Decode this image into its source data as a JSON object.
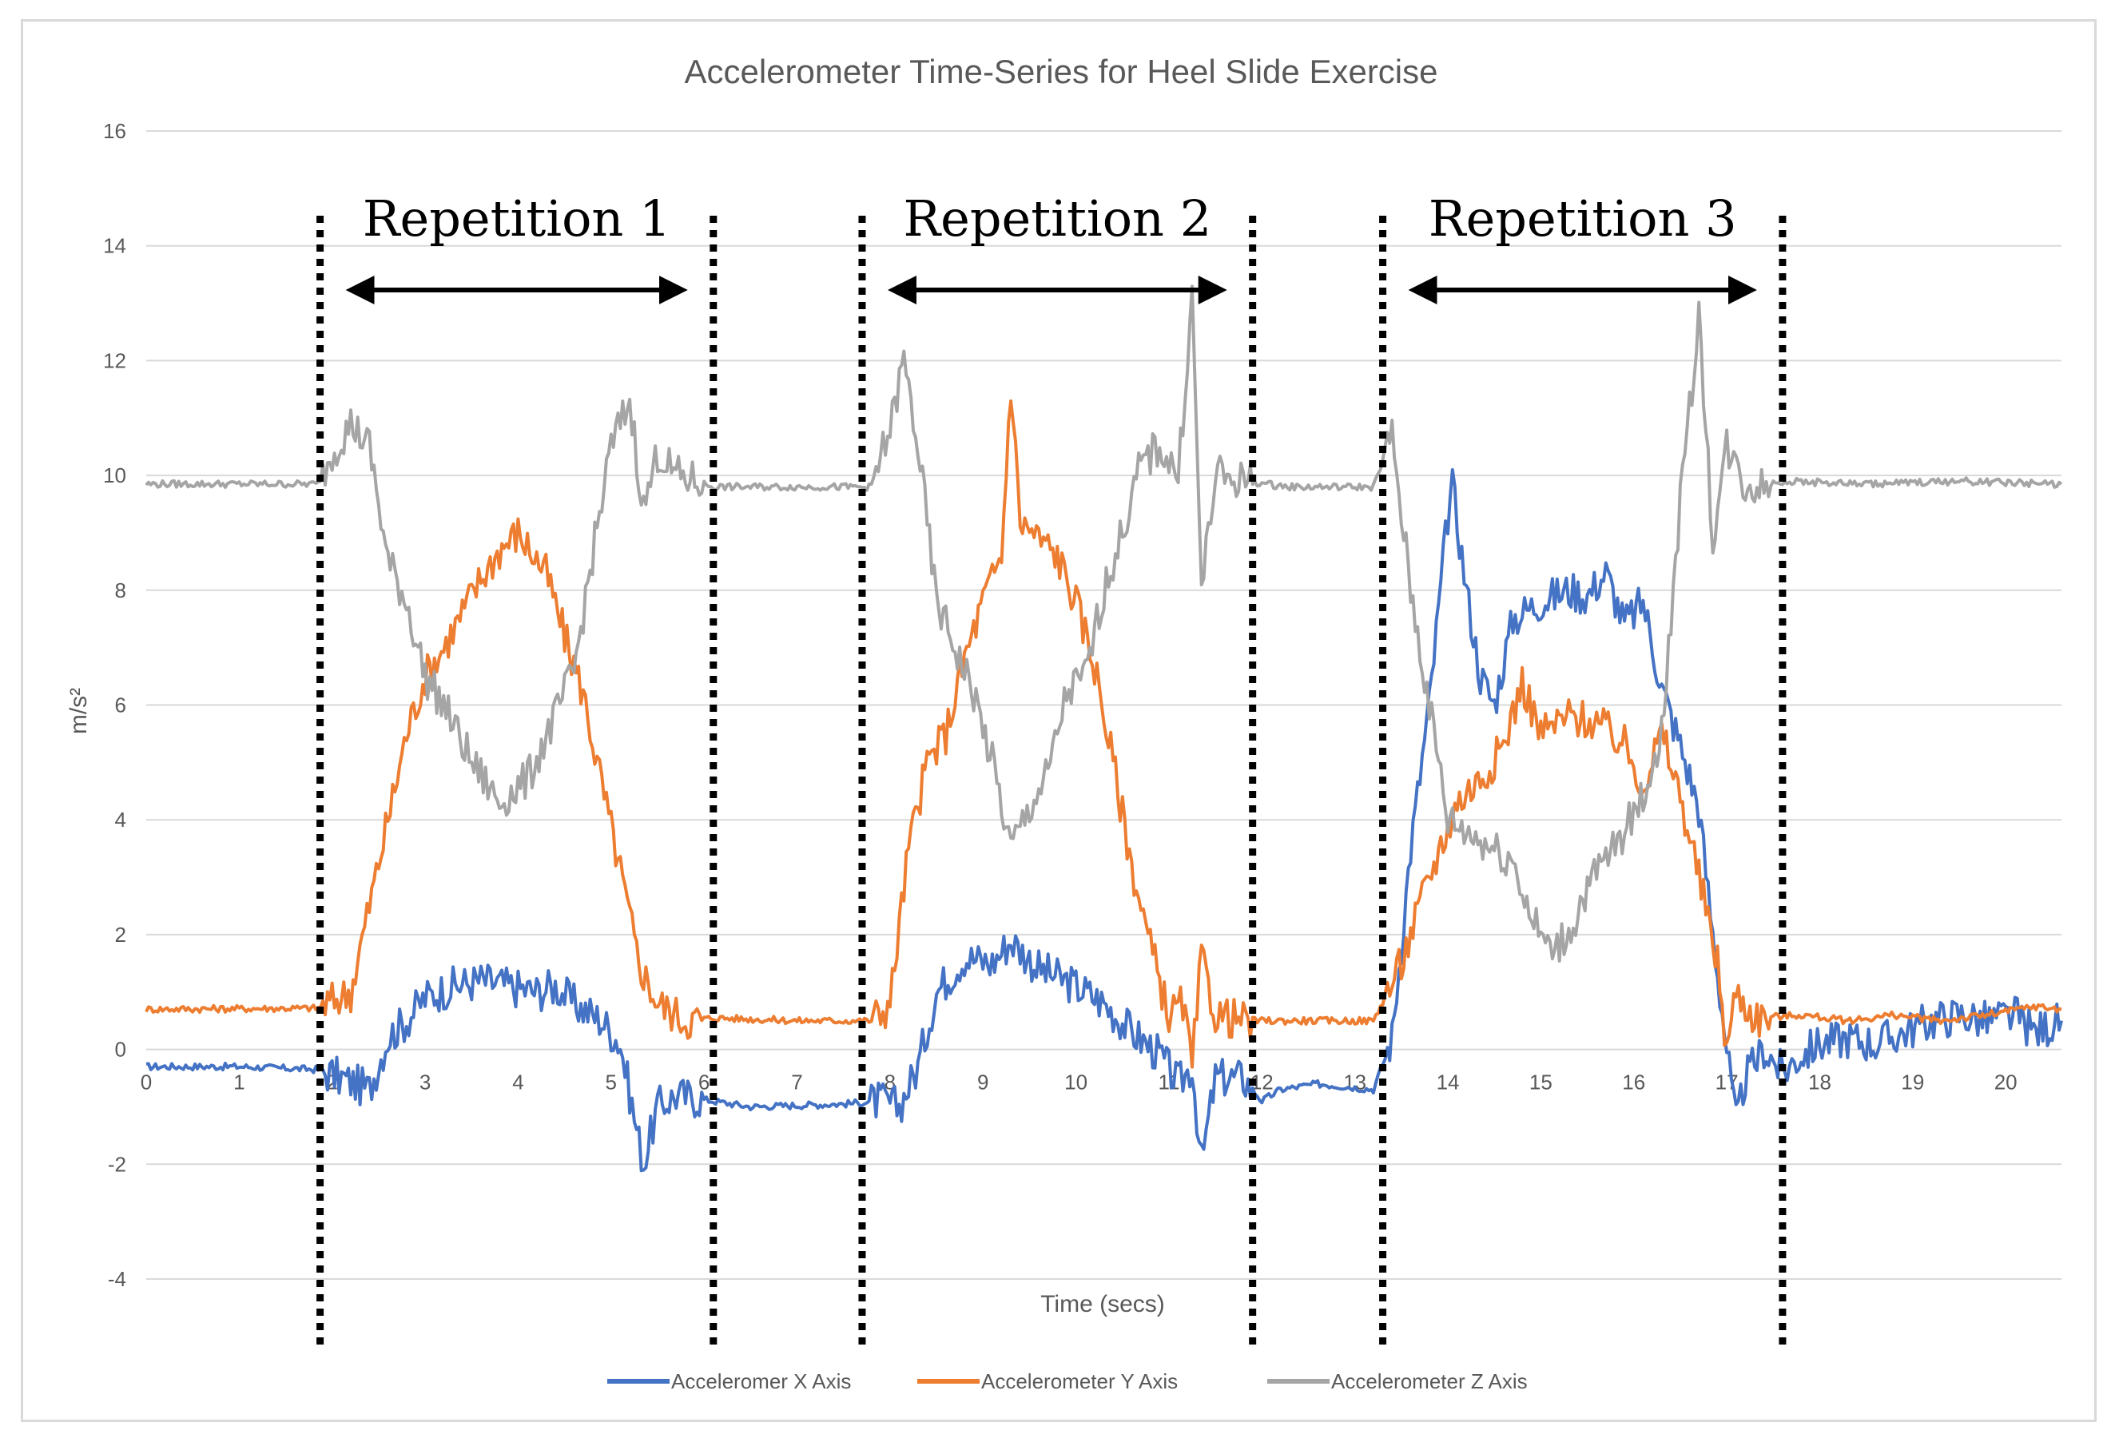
{
  "chart_data": {
    "type": "line",
    "title": "Accelerometer Time-Series for Heel Slide Exercise",
    "xlabel": "Time (secs)",
    "ylabel": "m/s²",
    "xlim": [
      0,
      20.6
    ],
    "ylim": [
      -4,
      16
    ],
    "x_ticks": [
      0,
      1,
      2,
      3,
      4,
      5,
      6,
      7,
      8,
      9,
      10,
      11,
      12,
      13,
      14,
      15,
      16,
      17,
      18,
      19,
      20
    ],
    "x_tick_labels": [
      "0",
      "1",
      "2",
      "3",
      "4",
      "5",
      "6",
      "7",
      "8",
      "9",
      "10",
      "11",
      "12",
      "13",
      "14",
      "15",
      "16",
      "17",
      "18",
      "19",
      "20"
    ],
    "y_ticks": [
      -4,
      -2,
      0,
      2,
      4,
      6,
      8,
      10,
      12,
      14,
      16
    ],
    "grid": "horizontal",
    "legend_position": "bottom",
    "colors": {
      "x": "#4472c4",
      "y": "#ed7d31",
      "z": "#a5a5a5",
      "grid": "#d9d9d9",
      "annotation": "#000000"
    },
    "series": [
      {
        "name": "Acceleromer X Axis",
        "key": "x",
        "points": [
          [
            0,
            -0.3
          ],
          [
            1,
            -0.3
          ],
          [
            1.85,
            -0.35
          ],
          [
            2.1,
            -0.5
          ],
          [
            2.4,
            -0.7
          ],
          [
            2.6,
            0.2
          ],
          [
            2.8,
            0.5
          ],
          [
            3.0,
            0.9
          ],
          [
            3.3,
            1.1
          ],
          [
            3.6,
            1.2
          ],
          [
            3.9,
            1.1
          ],
          [
            4.2,
            1.0
          ],
          [
            4.4,
            1.1
          ],
          [
            4.6,
            0.8
          ],
          [
            4.9,
            0.5
          ],
          [
            5.1,
            0.1
          ],
          [
            5.25,
            -1.2
          ],
          [
            5.35,
            -2.0
          ],
          [
            5.5,
            -1.0
          ],
          [
            5.7,
            -0.8
          ],
          [
            6.1,
            -0.9
          ],
          [
            6.5,
            -1.0
          ],
          [
            7.5,
            -0.95
          ],
          [
            7.9,
            -0.9
          ],
          [
            8.1,
            -1.0
          ],
          [
            8.3,
            -0.3
          ],
          [
            8.5,
            1.0
          ],
          [
            8.8,
            1.6
          ],
          [
            9.1,
            1.5
          ],
          [
            9.3,
            1.9
          ],
          [
            9.6,
            1.4
          ],
          [
            10.0,
            1.1
          ],
          [
            10.3,
            0.8
          ],
          [
            10.6,
            0.3
          ],
          [
            10.9,
            -0.1
          ],
          [
            11.1,
            -0.6
          ],
          [
            11.25,
            -0.3
          ],
          [
            11.35,
            -2.0
          ],
          [
            11.5,
            -0.5
          ],
          [
            11.8,
            -0.5
          ],
          [
            12.0,
            -0.9
          ],
          [
            12.2,
            -0.7
          ],
          [
            12.6,
            -0.6
          ],
          [
            13.2,
            -0.7
          ],
          [
            13.4,
            0.2
          ],
          [
            13.6,
            3.5
          ],
          [
            13.8,
            6.0
          ],
          [
            14.0,
            9.3
          ],
          [
            14.05,
            9.8
          ],
          [
            14.2,
            8.0
          ],
          [
            14.35,
            6.5
          ],
          [
            14.5,
            6.0
          ],
          [
            14.7,
            7.5
          ],
          [
            15.0,
            7.8
          ],
          [
            15.3,
            8.0
          ],
          [
            15.5,
            7.9
          ],
          [
            15.7,
            8.3
          ],
          [
            15.9,
            7.4
          ],
          [
            16.1,
            7.8
          ],
          [
            16.3,
            6.3
          ],
          [
            16.5,
            5.3
          ],
          [
            16.7,
            4.2
          ],
          [
            16.85,
            2.0
          ],
          [
            17.0,
            0.0
          ],
          [
            17.1,
            -1.3
          ],
          [
            17.2,
            -0.5
          ],
          [
            17.4,
            0.0
          ],
          [
            17.6,
            -0.4
          ],
          [
            17.8,
            -0.1
          ],
          [
            18.0,
            0.1
          ],
          [
            18.3,
            0.2
          ],
          [
            18.6,
            0.1
          ],
          [
            18.9,
            0.3
          ],
          [
            19.2,
            0.5
          ],
          [
            19.5,
            0.6
          ],
          [
            19.8,
            0.5
          ],
          [
            20.1,
            0.6
          ],
          [
            20.3,
            0.3
          ],
          [
            20.6,
            0.5
          ]
        ]
      },
      {
        "name": "Accelerometer Y Axis",
        "key": "y",
        "points": [
          [
            0,
            0.7
          ],
          [
            1.85,
            0.72
          ],
          [
            2.2,
            1.0
          ],
          [
            2.4,
            2.5
          ],
          [
            2.6,
            4.0
          ],
          [
            2.8,
            5.5
          ],
          [
            3.0,
            6.5
          ],
          [
            3.2,
            7.0
          ],
          [
            3.4,
            7.6
          ],
          [
            3.6,
            8.2
          ],
          [
            3.8,
            8.7
          ],
          [
            4.0,
            9.0
          ],
          [
            4.3,
            8.3
          ],
          [
            4.5,
            7.2
          ],
          [
            4.7,
            6.2
          ],
          [
            4.9,
            4.6
          ],
          [
            5.1,
            3.1
          ],
          [
            5.3,
            1.5
          ],
          [
            5.5,
            0.8
          ],
          [
            5.8,
            0.5
          ],
          [
            6.1,
            0.55
          ],
          [
            7.0,
            0.5
          ],
          [
            7.8,
            0.5
          ],
          [
            8.0,
            0.8
          ],
          [
            8.2,
            3.5
          ],
          [
            8.4,
            5.0
          ],
          [
            8.6,
            5.5
          ],
          [
            8.8,
            6.8
          ],
          [
            9.0,
            7.8
          ],
          [
            9.2,
            8.6
          ],
          [
            9.3,
            11.6
          ],
          [
            9.4,
            9.2
          ],
          [
            9.6,
            8.9
          ],
          [
            9.8,
            8.6
          ],
          [
            10.0,
            7.8
          ],
          [
            10.2,
            6.7
          ],
          [
            10.4,
            5.0
          ],
          [
            10.6,
            3.2
          ],
          [
            10.8,
            1.8
          ],
          [
            11.0,
            0.6
          ],
          [
            11.15,
            0.8
          ],
          [
            11.25,
            -0.3
          ],
          [
            11.35,
            1.6
          ],
          [
            11.5,
            0.6
          ],
          [
            11.8,
            0.5
          ],
          [
            12.3,
            0.5
          ],
          [
            13.2,
            0.5
          ],
          [
            13.5,
            1.5
          ],
          [
            13.8,
            3.0
          ],
          [
            14.1,
            4.3
          ],
          [
            14.4,
            4.8
          ],
          [
            14.6,
            5.3
          ],
          [
            14.8,
            6.4
          ],
          [
            15.0,
            5.5
          ],
          [
            15.3,
            5.8
          ],
          [
            15.6,
            5.7
          ],
          [
            15.9,
            5.3
          ],
          [
            16.1,
            4.6
          ],
          [
            16.3,
            5.5
          ],
          [
            16.5,
            4.4
          ],
          [
            16.7,
            3.0
          ],
          [
            16.9,
            1.5
          ],
          [
            17.0,
            0.0
          ],
          [
            17.1,
            1.0
          ],
          [
            17.3,
            0.55
          ],
          [
            17.8,
            0.6
          ],
          [
            18.3,
            0.5
          ],
          [
            18.8,
            0.6
          ],
          [
            19.3,
            0.5
          ],
          [
            19.8,
            0.6
          ],
          [
            20.3,
            0.75
          ],
          [
            20.6,
            0.7
          ]
        ]
      },
      {
        "name": "Accelerometer Z Axis",
        "key": "z",
        "points": [
          [
            0,
            9.85
          ],
          [
            1.85,
            9.85
          ],
          [
            2.0,
            10.4
          ],
          [
            2.2,
            10.9
          ],
          [
            2.4,
            10.5
          ],
          [
            2.6,
            8.5
          ],
          [
            2.8,
            7.8
          ],
          [
            3.0,
            6.5
          ],
          [
            3.2,
            6.0
          ],
          [
            3.5,
            5.0
          ],
          [
            3.8,
            4.3
          ],
          [
            4.1,
            4.7
          ],
          [
            4.4,
            5.8
          ],
          [
            4.6,
            6.6
          ],
          [
            4.8,
            8.6
          ],
          [
            5.0,
            10.5
          ],
          [
            5.2,
            11.3
          ],
          [
            5.35,
            9.4
          ],
          [
            5.5,
            10.4
          ],
          [
            5.7,
            10.0
          ],
          [
            6.1,
            9.8
          ],
          [
            7.8,
            9.8
          ],
          [
            8.0,
            10.8
          ],
          [
            8.15,
            12.0
          ],
          [
            8.3,
            10.5
          ],
          [
            8.5,
            7.8
          ],
          [
            8.7,
            7.0
          ],
          [
            8.9,
            6.2
          ],
          [
            9.1,
            5.0
          ],
          [
            9.3,
            3.5
          ],
          [
            9.5,
            4.2
          ],
          [
            9.7,
            4.8
          ],
          [
            9.9,
            6.2
          ],
          [
            10.1,
            6.5
          ],
          [
            10.3,
            8.0
          ],
          [
            10.5,
            9.0
          ],
          [
            10.7,
            10.2
          ],
          [
            10.9,
            10.5
          ],
          [
            11.1,
            10.0
          ],
          [
            11.25,
            13.1
          ],
          [
            11.35,
            8.0
          ],
          [
            11.5,
            10.0
          ],
          [
            11.8,
            9.9
          ],
          [
            12.3,
            9.8
          ],
          [
            13.2,
            9.8
          ],
          [
            13.4,
            10.7
          ],
          [
            13.6,
            8.0
          ],
          [
            13.8,
            6.0
          ],
          [
            14.0,
            4.0
          ],
          [
            14.2,
            3.8
          ],
          [
            14.5,
            3.5
          ],
          [
            14.7,
            3.3
          ],
          [
            14.9,
            2.3
          ],
          [
            15.1,
            1.7
          ],
          [
            15.3,
            2.0
          ],
          [
            15.5,
            2.8
          ],
          [
            15.7,
            3.3
          ],
          [
            15.9,
            3.8
          ],
          [
            16.1,
            4.4
          ],
          [
            16.3,
            5.5
          ],
          [
            16.5,
            9.5
          ],
          [
            16.7,
            12.8
          ],
          [
            16.85,
            8.9
          ],
          [
            17.0,
            10.5
          ],
          [
            17.2,
            9.8
          ],
          [
            17.6,
            9.9
          ],
          [
            18.5,
            9.85
          ],
          [
            19.5,
            9.9
          ],
          [
            20.6,
            9.85
          ]
        ]
      }
    ],
    "repetitions": [
      {
        "label": "Repetition 1",
        "start": 1.87,
        "end": 6.1
      },
      {
        "label": "Repetition 2",
        "start": 7.7,
        "end": 11.9
      },
      {
        "label": "Repetition 3",
        "start": 13.3,
        "end": 17.6
      }
    ]
  }
}
